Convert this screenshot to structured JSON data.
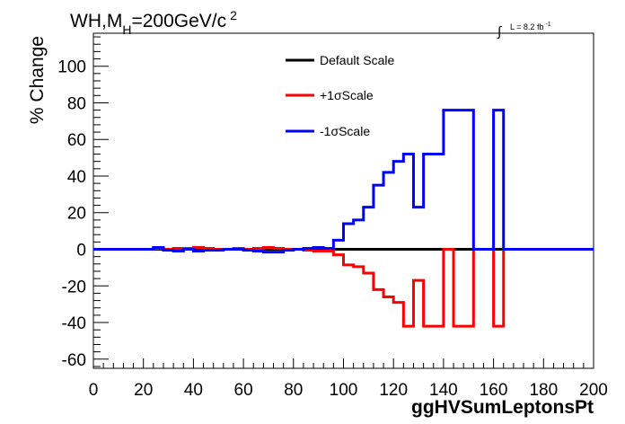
{
  "header": {
    "process_main": "WH,M",
    "process_sub": "H",
    "process_rest": "=200GeV/c",
    "process_sup": "2",
    "lumi_label": "L = 8.2 fb",
    "lumi_sup": "-1"
  },
  "chart_data": {
    "type": "line",
    "title": "",
    "xlabel": "ggHVSumLeptonsPt",
    "ylabel": "% Change",
    "xlim": [
      0,
      200
    ],
    "ylim": [
      -65,
      118
    ],
    "xticks": [
      0,
      20,
      40,
      60,
      80,
      100,
      120,
      140,
      160,
      180,
      200
    ],
    "yticks": [
      -60,
      -40,
      -20,
      0,
      20,
      40,
      60,
      80,
      100
    ],
    "grid": false,
    "legend_position": "top-center",
    "bin_edges": [
      0,
      4,
      8,
      12,
      16,
      20,
      24,
      28,
      32,
      36,
      40,
      44,
      48,
      52,
      56,
      60,
      64,
      68,
      72,
      76,
      80,
      84,
      88,
      92,
      96,
      100,
      104,
      108,
      112,
      116,
      120,
      124,
      128,
      132,
      136,
      140,
      144,
      148,
      152,
      156,
      160,
      164,
      168,
      172,
      176,
      180,
      184,
      188,
      192,
      196,
      200
    ],
    "series": [
      {
        "name": "Default Scale",
        "color": "#000000",
        "values": [
          0,
          0,
          0,
          0,
          0,
          0,
          0,
          0,
          0,
          0,
          0,
          0,
          0,
          0,
          0,
          0,
          0,
          0,
          0,
          0,
          0,
          0,
          0,
          0,
          0,
          0,
          0,
          0,
          0,
          0,
          0,
          0,
          0,
          0,
          0,
          0,
          0,
          0,
          0,
          0,
          0,
          0,
          0,
          0,
          0,
          0,
          0,
          0,
          0,
          0
        ]
      },
      {
        "name": "+1σScale",
        "color": "#ff0000",
        "values": [
          0,
          0,
          0,
          0,
          0,
          0,
          0.5,
          0,
          0.5,
          0.5,
          1,
          0.5,
          0,
          0,
          0.5,
          0,
          0.5,
          1,
          0.5,
          0,
          0,
          -0.5,
          -1,
          -1,
          -3,
          -8.5,
          -9.5,
          -13,
          -22,
          -26,
          -29,
          -42,
          -17,
          -42,
          -42,
          0,
          -42,
          -42,
          0,
          0,
          -42,
          0,
          0,
          0,
          0,
          0,
          0,
          0,
          0,
          0
        ]
      },
      {
        "name": "-1σScale",
        "color": "#0000ff",
        "values": [
          0,
          0,
          0,
          0,
          0,
          0,
          1,
          -0.5,
          -1,
          0,
          -1,
          -0.5,
          -0.5,
          0,
          0,
          -0.5,
          -1,
          -1.5,
          -1.5,
          -0.5,
          0,
          0.5,
          1,
          0.5,
          5,
          14,
          16,
          23,
          35,
          42,
          48,
          52,
          23,
          52,
          52,
          76,
          76,
          76,
          0,
          0,
          76,
          0,
          0,
          0,
          0,
          0,
          0,
          0,
          0,
          0
        ]
      }
    ]
  }
}
